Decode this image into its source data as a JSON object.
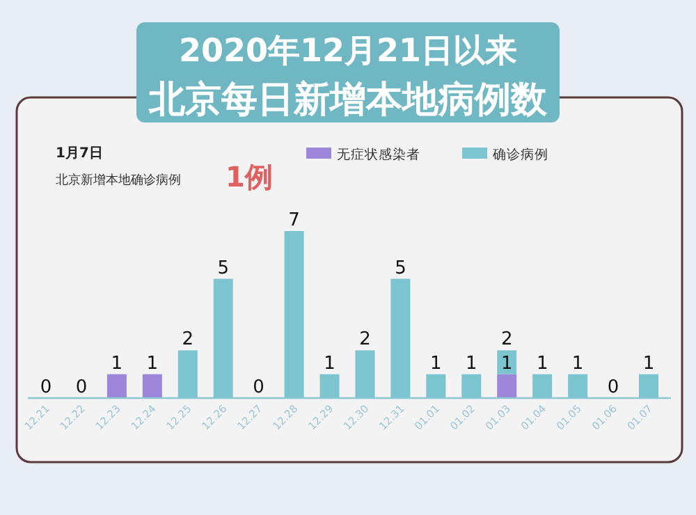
{
  "chart_data": {
    "type": "bar",
    "title": "2020年12月21日以来",
    "subtitle": "北京每日新增本地病例数",
    "annotations": [
      "1月7日",
      "北京新增本地确诊病例",
      "1例"
    ],
    "categories": [
      "12.21",
      "12.22",
      "12.23",
      "12.24",
      "12.25",
      "12.26",
      "12.27",
      "12.28",
      "12.29",
      "12.30",
      "12.31",
      "01.01",
      "01.02",
      "01.03",
      "01.04",
      "01.05",
      "01.06",
      "01.07"
    ],
    "stacked": true,
    "legend": "top",
    "series": [
      {
        "name": "无症状感染者",
        "color": "#9b86d9",
        "values": [
          0,
          0,
          1,
          1,
          0,
          0,
          0,
          0,
          0,
          0,
          0,
          0,
          0,
          1,
          0,
          0,
          0,
          0
        ],
        "value_labels": [
          null,
          null,
          "1",
          "1",
          null,
          null,
          null,
          null,
          null,
          null,
          null,
          null,
          null,
          "1",
          null,
          null,
          null,
          null
        ]
      },
      {
        "name": "确诊病例",
        "color": "#7cc4cf",
        "values": [
          0,
          0,
          0,
          0,
          2,
          5,
          0,
          7,
          1,
          2,
          5,
          1,
          1,
          1,
          1,
          1,
          0,
          1
        ],
        "value_labels": [
          "0",
          "0",
          null,
          null,
          "2",
          "5",
          "0",
          "7",
          "1",
          "2",
          "5",
          "1",
          "1",
          null,
          "1",
          "1",
          "0",
          "1"
        ]
      }
    ],
    "totals": [
      null,
      null,
      null,
      null,
      null,
      null,
      null,
      null,
      null,
      null,
      null,
      null,
      null,
      "2",
      null,
      null,
      null,
      null
    ]
  }
}
